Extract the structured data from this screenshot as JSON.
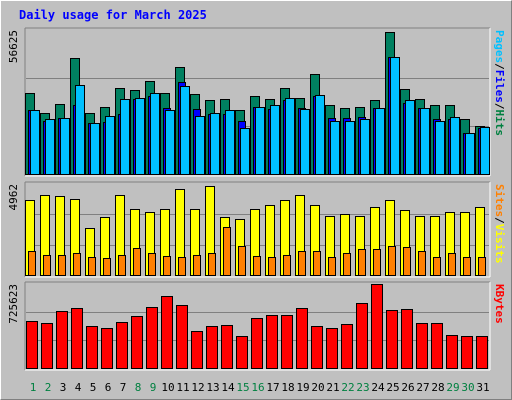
{
  "chart_data": {
    "type": "bar",
    "title": "Daily usage for March 2025",
    "categories": [
      "1",
      "2",
      "3",
      "4",
      "5",
      "6",
      "7",
      "8",
      "9",
      "10",
      "11",
      "12",
      "13",
      "14",
      "15",
      "16",
      "17",
      "18",
      "19",
      "20",
      "21",
      "22",
      "23",
      "24",
      "25",
      "26",
      "27",
      "28",
      "29",
      "30",
      "31"
    ],
    "weekend_days": [
      "1",
      "2",
      "8",
      "9",
      "15",
      "16",
      "22",
      "23",
      "29",
      "30"
    ],
    "panels": [
      {
        "id": "hits-files-pages",
        "max_label": "56625",
        "ymax": 56625,
        "right_label_parts": [
          {
            "text": "Pages",
            "color": "#00c0ff"
          },
          {
            "text": "/",
            "color": "#000000"
          },
          {
            "text": "Files",
            "color": "#0000ff"
          },
          {
            "text": "/",
            "color": "#000000"
          },
          {
            "text": "Hits",
            "color": "#008040"
          }
        ],
        "series": [
          {
            "name": "Hits",
            "color": "#008060",
            "values": [
              32000,
              24000,
              27500,
              45500,
              24000,
              26500,
              34000,
              33000,
              36500,
              32000,
              42000,
              31500,
              29000,
              29500,
              25000,
              30500,
              29500,
              34000,
              30000,
              39500,
              27000,
              26000,
              26500,
              29000,
              56000,
              33500,
              29500,
              27000,
              27000,
              21500,
              19000
            ]
          },
          {
            "name": "Files",
            "color": "#0000ff",
            "values": [
              25000,
              21000,
              22000,
              27000,
              20000,
              20500,
              23500,
              29500,
              30500,
              26000,
              36000,
              25500,
              23500,
              23500,
              21000,
              26500,
              25500,
              29000,
              26000,
              30500,
              22000,
              22000,
              22500,
              26000,
              46000,
              28000,
              26000,
              21500,
              21500,
              16000,
              18000
            ]
          },
          {
            "name": "Pages",
            "color": "#00c0ff",
            "values": [
              25000,
              21500,
              22000,
              35000,
              20000,
              23000,
              29500,
              30000,
              32000,
              25000,
              34500,
              23000,
              24000,
              25000,
              18000,
              26500,
              27000,
              30000,
              25500,
              31000,
              21000,
              21000,
              21500,
              26000,
              46000,
              29000,
              26000,
              21000,
              22500,
              16000,
              18500
            ]
          }
        ]
      },
      {
        "id": "visits-sites",
        "max_label": "4962",
        "ymax": 4962,
        "right_label_parts": [
          {
            "text": "Sites",
            "color": "#ff8000"
          },
          {
            "text": "/",
            "color": "#000000"
          },
          {
            "text": "Visits",
            "color": "#ffff00"
          }
        ],
        "series": [
          {
            "name": "Visits",
            "color": "#ffff00",
            "values": [
              4090,
              4360,
              4310,
              4120,
              2580,
              3160,
              4360,
              3580,
              3460,
              3580,
              4710,
              3580,
              4880,
              3160,
              3080,
              3580,
              3790,
              4090,
              4360,
              3790,
              3240,
              3310,
              3240,
              3700,
              4090,
              3520,
              3240,
              3240,
              3460,
              3460,
              3700
            ]
          },
          {
            "name": "Sites",
            "color": "#ff8000",
            "values": [
              1290,
              1070,
              1090,
              1190,
              1000,
              910,
              1090,
              1490,
              1190,
              1020,
              1000,
              1090,
              1200,
              2630,
              1560,
              1050,
              1000,
              1100,
              1300,
              1300,
              1000,
              1200,
              1400,
              1400,
              1570,
              1500,
              1300,
              1000,
              1200,
              1000,
              1000
            ]
          }
        ]
      },
      {
        "id": "kbytes",
        "max_label": "725623",
        "ymax": 725623,
        "right_label_parts": [
          {
            "text": "KBytes",
            "color": "#ff0000"
          }
        ],
        "series": [
          {
            "name": "KBytes",
            "color": "#ff0000",
            "values": [
              410000,
              390000,
              490000,
              520000,
              360000,
              345000,
              400000,
              450000,
              525000,
              625000,
              540000,
              320000,
              360000,
              375000,
              280000,
              435000,
              455000,
              455000,
              515000,
              360000,
              345000,
              380000,
              565000,
              725623,
              500000,
              510000,
              390000,
              390000,
              285000,
              275000,
              275000
            ]
          }
        ]
      }
    ],
    "grid": true,
    "legend": "right-vertical"
  }
}
